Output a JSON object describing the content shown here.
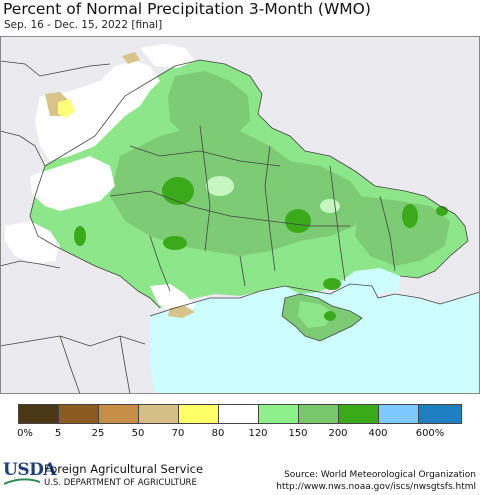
{
  "header": {
    "title": "Percent of Normal Precipitation 3-Month (WMO)",
    "subtitle": "Sep. 16 - Dec. 15, 2022 [final]"
  },
  "legend": {
    "ticks": [
      "0%",
      "5",
      "25",
      "50",
      "70",
      "80",
      "120",
      "150",
      "200",
      "400",
      "600%"
    ],
    "colors": [
      "#4a3716",
      "#8b5a20",
      "#c68e46",
      "#d4c087",
      "#ffff66",
      "#ffffff",
      "#8ef08a",
      "#79c96c",
      "#3aaa1a",
      "#7cc8ff",
      "#1f7fc0"
    ]
  },
  "map": {
    "colors": {
      "background": "#ebebef",
      "sea": "#cdfdff",
      "land_green": "#8ee68a",
      "land_mid": "#7dcb74",
      "land_dark": "#3aaa1a",
      "land_white": "#ffffff",
      "land_tan": "#d8c38a",
      "land_yellow": "#ffff78",
      "border": "#444444"
    }
  },
  "footer": {
    "logo_text": "USDA",
    "agency": "Foreign Agricultural Service",
    "department": "U.S. DEPARTMENT OF AGRICULTURE",
    "source": "Source: World Meteorological Organization",
    "url": "http://www.nws.noaa.gov/iscs/nwsgtsfs.html"
  }
}
